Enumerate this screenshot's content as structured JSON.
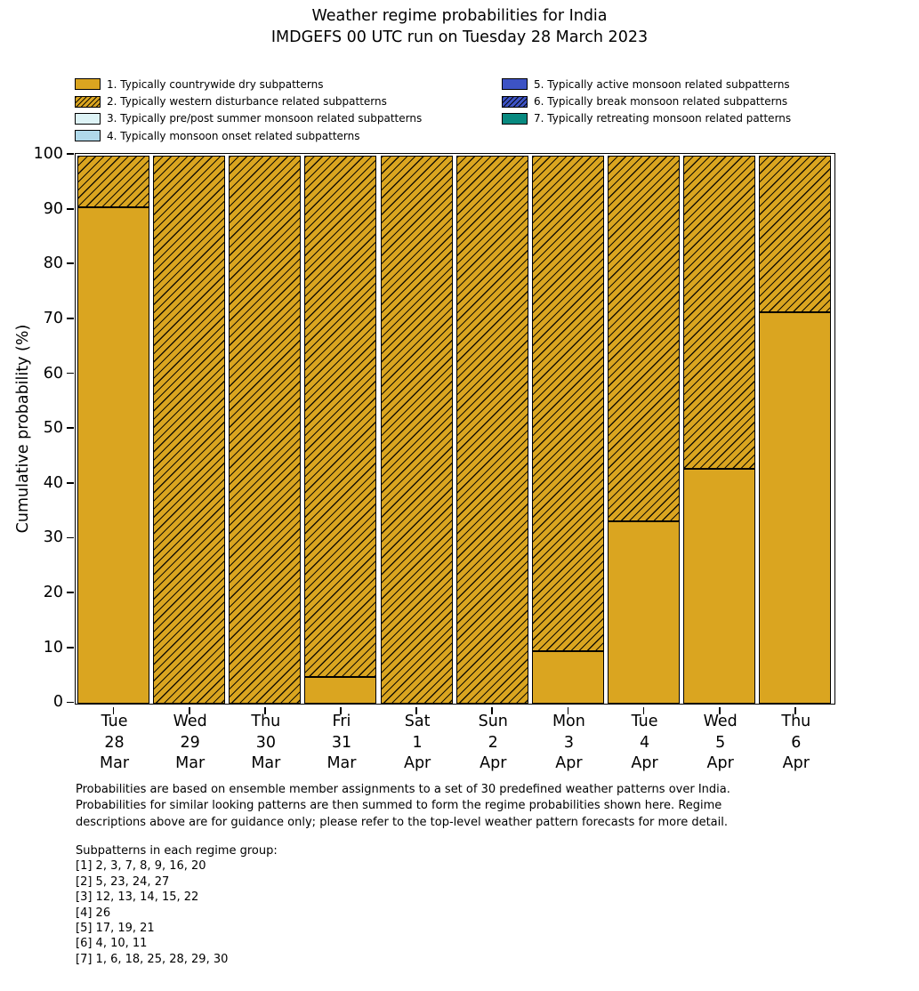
{
  "chart_data": {
    "type": "bar",
    "stacked": true,
    "title": "Weather regime probabilities for India",
    "subtitle": "IMDGEFS 00 UTC run on Tuesday 28 March 2023",
    "ylabel": "Cumulative probability (%)",
    "ylim": [
      0,
      100
    ],
    "yticks": [
      0,
      10,
      20,
      30,
      40,
      50,
      60,
      70,
      80,
      90,
      100
    ],
    "grid": false,
    "legend_position": "top, two columns",
    "categories": [
      [
        "Tue",
        "28",
        "Mar"
      ],
      [
        "Wed",
        "29",
        "Mar"
      ],
      [
        "Thu",
        "30",
        "Mar"
      ],
      [
        "Fri",
        "31",
        "Mar"
      ],
      [
        "Sat",
        "1",
        "Apr"
      ],
      [
        "Sun",
        "2",
        "Apr"
      ],
      [
        "Mon",
        "3",
        "Apr"
      ],
      [
        "Tue",
        "4",
        "Apr"
      ],
      [
        "Wed",
        "5",
        "Apr"
      ],
      [
        "Thu",
        "6",
        "Apr"
      ]
    ],
    "series": [
      {
        "name": "1. Typically countrywide dry subpatterns",
        "color": "#daa520",
        "hatch": false,
        "values": [
          90.5,
          0,
          0,
          4.8,
          0,
          0,
          9.5,
          33.3,
          42.9,
          71.4
        ]
      },
      {
        "name": "2. Typically western disturbance related subpatterns",
        "color": "#daa520",
        "hatch": true,
        "values": [
          9.5,
          100,
          100,
          95.2,
          100,
          100,
          90.5,
          66.7,
          57.1,
          28.6
        ]
      }
    ],
    "legend": [
      {
        "label": "1. Typically countrywide dry subpatterns",
        "color": "#daa520",
        "hatch": false
      },
      {
        "label": "2. Typically western disturbance related subpatterns",
        "color": "#daa520",
        "hatch": true
      },
      {
        "label": "3. Typically pre/post summer monsoon related subpatterns",
        "color": "#ddf3f6",
        "hatch": false
      },
      {
        "label": "4. Typically monsoon onset related subpatterns",
        "color": "#b0d9ea",
        "hatch": false
      },
      {
        "label": "5. Typically active monsoon related subpatterns",
        "color": "#3d53c5",
        "hatch": false
      },
      {
        "label": "6. Typically break monsoon related subpatterns",
        "color": "#3d53c5",
        "hatch": true
      },
      {
        "label": "7. Typically retreating monsoon related patterns",
        "color": "#088a80",
        "hatch": false
      }
    ]
  },
  "footer": {
    "description": "Probabilities are based on ensemble member assignments to a set of 30 predefined weather patterns over India.\nProbabilities for similar looking patterns are then summed to form the regime probabilities shown here. Regime\ndescriptions above are for guidance only; please refer to the top-level weather pattern forecasts for more detail.",
    "subpatterns": "Subpatterns in each regime group:\n[1] 2, 3, 7, 8, 9, 16, 20\n[2] 5, 23, 24, 27\n[3] 12, 13, 14, 15, 22\n[4] 26\n[5] 17, 19, 21\n[6] 4, 10, 11\n[7] 1, 6, 18, 25, 28, 29, 30"
  }
}
